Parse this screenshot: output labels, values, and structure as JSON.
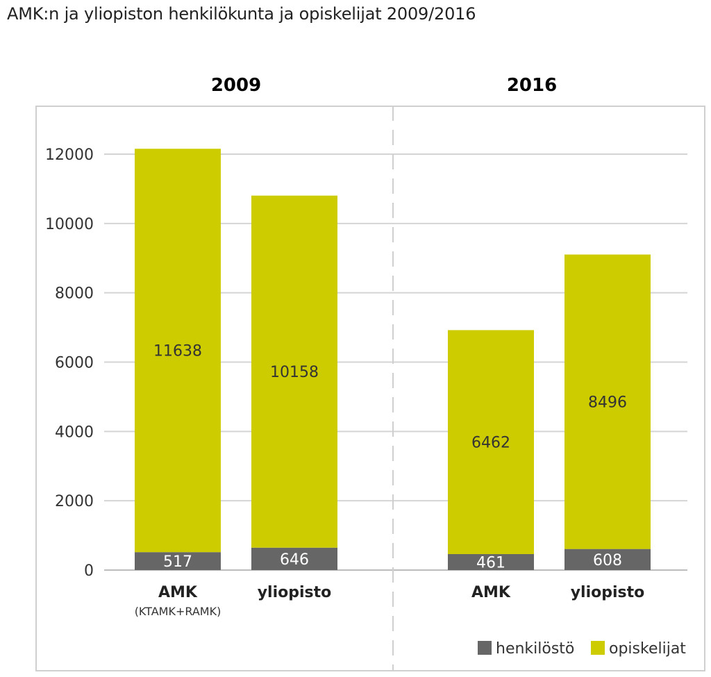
{
  "title": "AMK:n ja yliopiston henkilökunta ja opiskelijat 2009/2016",
  "groups": [
    "2009",
    "2016"
  ],
  "legend": {
    "henkilosto": "henkilöstö",
    "opiskelijat": "opiskelijat"
  },
  "colors": {
    "henkilosto": "#666666",
    "opiskelijat": "#cccc00",
    "grid": "#d4d4d4",
    "divider": "#cfcfcf"
  },
  "chart_data": {
    "type": "bar",
    "stacked": true,
    "title": "AMK:n ja yliopiston henkilökunta ja opiskelijat 2009/2016",
    "groups": [
      "2009",
      "2016"
    ],
    "categories": [
      {
        "group": "2009",
        "label": "AMK",
        "sublabel": "(KTAMK+RAMK)"
      },
      {
        "group": "2009",
        "label": "yliopisto",
        "sublabel": ""
      },
      {
        "group": "2016",
        "label": "AMK",
        "sublabel": ""
      },
      {
        "group": "2016",
        "label": "yliopisto",
        "sublabel": ""
      }
    ],
    "series": [
      {
        "name": "henkilöstö",
        "values": [
          517,
          646,
          461,
          608
        ]
      },
      {
        "name": "opiskelijat",
        "values": [
          11638,
          10158,
          6462,
          8496
        ]
      }
    ],
    "ylim": [
      0,
      12000
    ],
    "yticks": [
      0,
      2000,
      4000,
      6000,
      8000,
      10000,
      12000
    ],
    "grid": true,
    "legend_position": "bottom-right"
  }
}
